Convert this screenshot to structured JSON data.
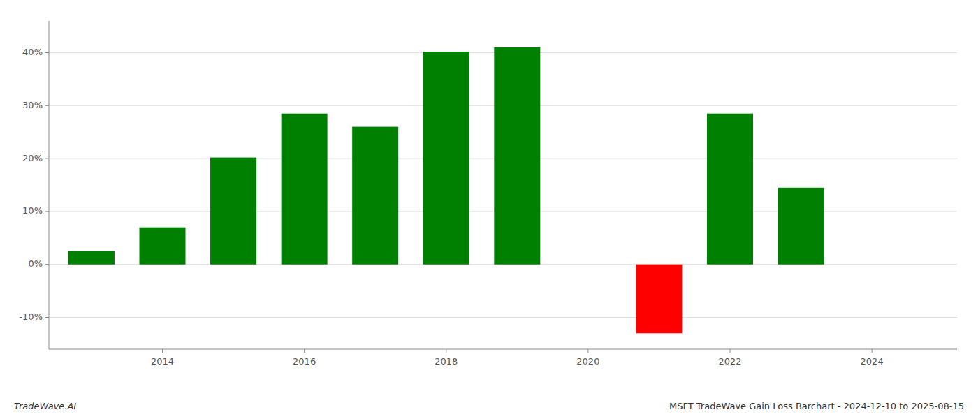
{
  "chart_data": {
    "type": "bar",
    "title": "MSFT TradeWave Gain Loss Barchart - 2024-12-10 to 2025-08-15",
    "annotations": [
      "TradeWave.AI"
    ],
    "x": [
      2013,
      2014,
      2015,
      2016,
      2017,
      2018,
      2019,
      2021,
      2022,
      2023
    ],
    "values": [
      2.5,
      7.0,
      20.2,
      28.5,
      26.0,
      40.2,
      41.0,
      -13.0,
      28.5,
      14.5
    ],
    "colors": [
      "#008000",
      "#008000",
      "#008000",
      "#008000",
      "#008000",
      "#008000",
      "#008000",
      "#ff0000",
      "#008000",
      "#008000"
    ],
    "xlim": [
      2012.4,
      2025.2
    ],
    "xticks": [
      2014,
      2016,
      2018,
      2020,
      2022,
      2024
    ],
    "ylim": [
      -16,
      46
    ],
    "yticks": [
      {
        "value": -10,
        "label": "-10%"
      },
      {
        "value": 0,
        "label": "0%"
      },
      {
        "value": 10,
        "label": "10%"
      },
      {
        "value": 20,
        "label": "20%"
      },
      {
        "value": 30,
        "label": "30%"
      },
      {
        "value": 40,
        "label": "40%"
      }
    ],
    "grid": true
  }
}
